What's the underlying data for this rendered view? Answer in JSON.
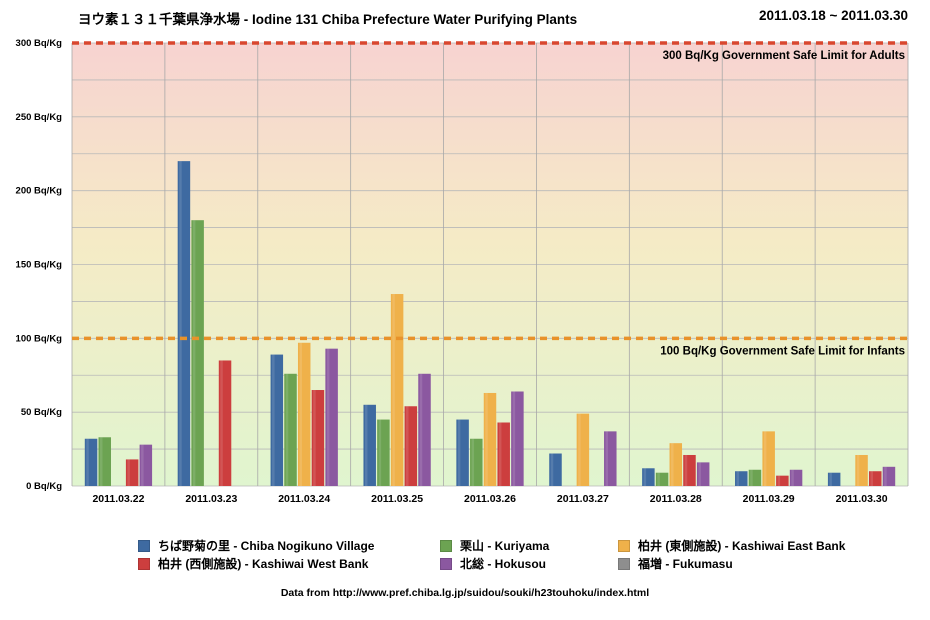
{
  "header": {
    "title": "ヨウ素１３１千葉県浄水場 - Iodine 131 Chiba Prefecture Water Purifying Plants",
    "date_range": "2011.03.18 ~ 2011.03.30"
  },
  "footer": {
    "source": "Data from http://www.pref.chiba.lg.jp/suidou/souki/h23touhoku/index.html"
  },
  "chart_data": {
    "type": "bar",
    "title": "ヨウ素１３１千葉県浄水場 - Iodine 131 Chiba Prefecture Water Purifying Plants",
    "ylim": [
      0,
      300
    ],
    "yticks": [
      "0 Bq/Kg",
      "50 Bq/Kg",
      "100 Bq/Kg",
      "150 Bq/Kg",
      "200 Bq/Kg",
      "250 Bq/Kg",
      "300 Bq/Kg"
    ],
    "grid": true,
    "legend_position": "bottom",
    "categories": [
      "2011.03.22",
      "2011.03.23",
      "2011.03.24",
      "2011.03.25",
      "2011.03.26",
      "2011.03.27",
      "2011.03.28",
      "2011.03.29",
      "2011.03.30"
    ],
    "series": [
      {
        "name": "ちば野菊の里 - Chiba Nogikuno Village",
        "color": "#3e6aa1",
        "values": [
          32,
          220,
          89,
          55,
          45,
          22,
          12,
          10,
          9
        ]
      },
      {
        "name": "栗山 - Kuriyama",
        "color": "#6ca352",
        "values": [
          33,
          180,
          76,
          45,
          32,
          null,
          9,
          11,
          null
        ]
      },
      {
        "name": "柏井 (東側施設) - Kashiwai East Bank",
        "color": "#efb14a",
        "values": [
          null,
          null,
          97,
          130,
          63,
          49,
          29,
          37,
          21
        ]
      },
      {
        "name": "柏井 (西側施設) - Kashiwai West Bank",
        "color": "#cc3e3e",
        "values": [
          18,
          85,
          65,
          54,
          43,
          null,
          21,
          7,
          10
        ]
      },
      {
        "name": "北総 - Hokusou",
        "color": "#8b58a0",
        "values": [
          28,
          null,
          93,
          76,
          64,
          37,
          16,
          11,
          13
        ]
      },
      {
        "name": "福増 - Fukumasu",
        "color": "#8e8e8e",
        "values": [
          null,
          null,
          null,
          null,
          null,
          null,
          null,
          null,
          null
        ]
      }
    ],
    "thresholds": [
      {
        "value": 300,
        "label": "300 Bq/Kg Government Safe Limit for Adults",
        "color": "#d9472f"
      },
      {
        "value": 100,
        "label": "100 Bq/Kg Government Safe Limit for Infants",
        "color": "#e8922a"
      }
    ]
  }
}
